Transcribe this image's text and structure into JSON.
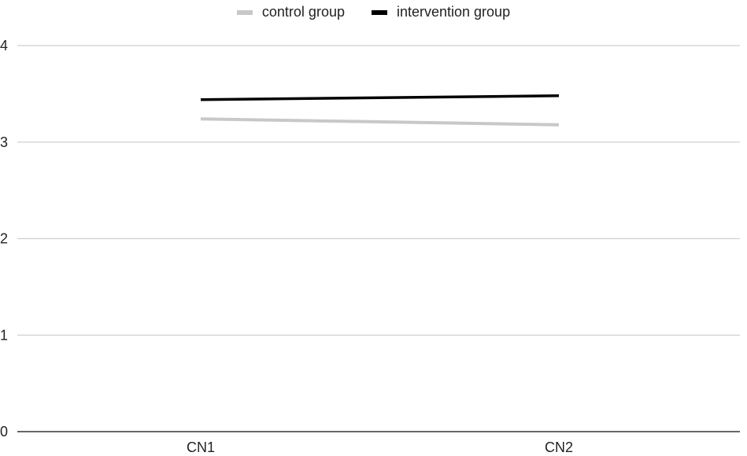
{
  "chart_data": {
    "type": "line",
    "categories": [
      "CN1",
      "CN2"
    ],
    "series": [
      {
        "name": "control group",
        "values": [
          3.24,
          3.18
        ],
        "color": "#c8c8c8"
      },
      {
        "name": "intervention group",
        "values": [
          3.44,
          3.48
        ],
        "color": "#000000"
      }
    ],
    "y_ticks": [
      "0",
      "1",
      "2",
      "3",
      "4"
    ],
    "ylim": [
      0,
      4
    ],
    "grid": true,
    "legend_position": "top-center"
  }
}
